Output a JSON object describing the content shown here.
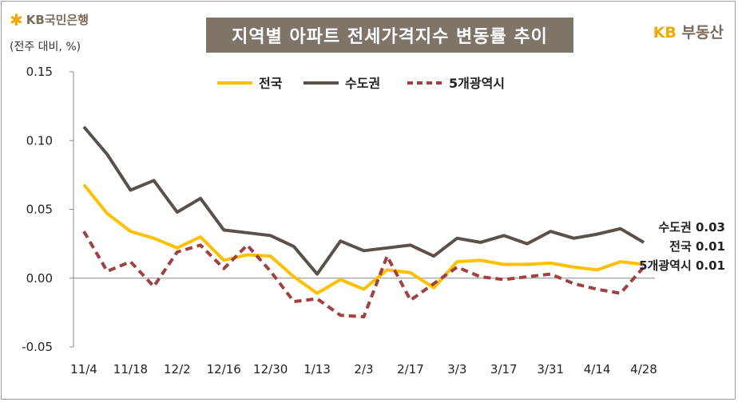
{
  "header": {
    "logo_left": "KB국민은행",
    "title": "지역별 아파트 전세가격지수 변동률 추이",
    "logo_right_kb": "KB",
    "logo_right_text": "부동산",
    "unit": "(전주 대비, %)"
  },
  "chart_data": {
    "type": "line",
    "title": "지역별 아파트 전세가격지수 변동률 추이",
    "ylabel": "(전주 대비, %)",
    "ylim": [
      -0.05,
      0.15
    ],
    "yticks": [
      "0.15",
      "0.10",
      "0.05",
      "0.00",
      "-0.05"
    ],
    "ytick_values": [
      0.15,
      0.1,
      0.05,
      0.0,
      -0.05
    ],
    "xtick_labels": [
      "11/4",
      "11/18",
      "12/2",
      "12/16",
      "12/30",
      "1/13",
      "2/3",
      "2/17",
      "3/3",
      "3/17",
      "3/31",
      "4/14",
      "4/28"
    ],
    "xtick_indices": [
      0,
      2,
      4,
      6,
      8,
      10,
      12,
      14,
      16,
      18,
      20,
      22,
      24
    ],
    "n_points": 25,
    "legend_position": "top",
    "series": [
      {
        "name": "전국",
        "color": "#ffc000",
        "dash": "solid",
        "values": [
          0.068,
          0.047,
          0.034,
          0.029,
          0.022,
          0.03,
          0.013,
          0.017,
          0.016,
          0.001,
          -0.011,
          -0.001,
          -0.008,
          0.006,
          0.004,
          -0.007,
          0.012,
          0.013,
          0.01,
          0.01,
          0.011,
          0.008,
          0.006,
          0.012,
          0.01
        ]
      },
      {
        "name": "수도권",
        "color": "#5a514a",
        "dash": "solid",
        "values": [
          0.11,
          0.09,
          0.064,
          0.071,
          0.048,
          0.058,
          0.035,
          0.033,
          0.031,
          0.023,
          0.003,
          0.027,
          0.02,
          0.022,
          0.024,
          0.016,
          0.029,
          0.026,
          0.031,
          0.025,
          0.034,
          0.029,
          0.032,
          0.036,
          0.026
        ]
      },
      {
        "name": "5개광역시",
        "color": "#a04040",
        "dash": "dashed",
        "values": [
          0.034,
          0.005,
          0.012,
          -0.006,
          0.019,
          0.024,
          0.007,
          0.024,
          0.005,
          -0.017,
          -0.015,
          -0.027,
          -0.028,
          0.016,
          -0.016,
          -0.004,
          0.008,
          0.001,
          -0.001,
          0.001,
          0.003,
          -0.004,
          -0.008,
          -0.011,
          0.008
        ]
      }
    ],
    "annotations": [
      {
        "series": "수도권",
        "label": "수도권",
        "value": "0.03"
      },
      {
        "series": "전국",
        "label": "전국",
        "value": "0.01"
      },
      {
        "series": "5개광역시",
        "label": "5개광역시",
        "value": "0.01"
      }
    ]
  }
}
